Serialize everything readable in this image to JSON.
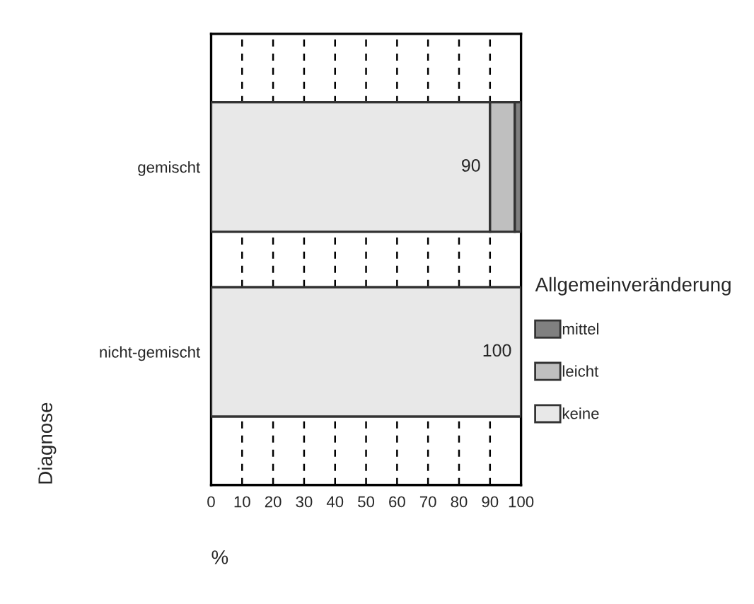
{
  "chart_data": {
    "type": "bar",
    "orientation": "horizontal",
    "stacked": true,
    "categories": [
      "gemischt",
      "nicht-gemischt"
    ],
    "series": [
      {
        "name": "keine",
        "color": "#e8e8e8",
        "values": [
          90,
          100
        ],
        "value_labels": [
          "90",
          "100"
        ]
      },
      {
        "name": "leicht",
        "color": "#bfbfbf",
        "values": [
          8,
          0
        ]
      },
      {
        "name": "mittel",
        "color": "#808080",
        "values": [
          2,
          0
        ]
      }
    ],
    "xlim": [
      0,
      100
    ],
    "xticks": [
      0,
      10,
      20,
      30,
      40,
      50,
      60,
      70,
      80,
      90,
      100
    ],
    "xlabel": "%",
    "ylabel": "Diagnose",
    "legend_title": "Allgemeinveränderung",
    "legend": "right",
    "grid": "x"
  }
}
